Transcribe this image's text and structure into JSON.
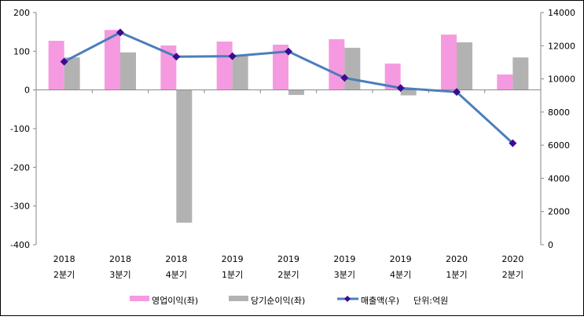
{
  "chart_data": {
    "type": "bar",
    "title": "",
    "categories": [
      [
        "2018",
        "2분기"
      ],
      [
        "2018",
        "3분기"
      ],
      [
        "2018",
        "4분기"
      ],
      [
        "2019",
        "1분기"
      ],
      [
        "2019",
        "2분기"
      ],
      [
        "2019",
        "3분기"
      ],
      [
        "2019",
        "4분기"
      ],
      [
        "2020",
        "1분기"
      ],
      [
        "2020",
        "2분기"
      ]
    ],
    "left_axis": {
      "ylim": [
        -400,
        200
      ],
      "ticks": [
        "200",
        "100",
        "0",
        "-100",
        "-200",
        "-300",
        "-400"
      ],
      "tick_values": [
        200,
        100,
        0,
        -100,
        -200,
        -300,
        -400
      ]
    },
    "right_axis": {
      "ylim": [
        0,
        14000
      ],
      "ticks": [
        "14000",
        "12000",
        "10000",
        "8000",
        "6000",
        "4000",
        "2000",
        "0"
      ],
      "tick_values": [
        14000,
        12000,
        10000,
        8000,
        6000,
        4000,
        2000,
        0
      ]
    },
    "series": [
      {
        "name": "영업이익(좌)",
        "type": "bar",
        "axis": "left",
        "color": "#F59AE0",
        "values": [
          127,
          155,
          115,
          125,
          117,
          131,
          68,
          143,
          40
        ]
      },
      {
        "name": "당기순이익(좌)",
        "type": "bar",
        "axis": "left",
        "color": "#B2B2B2",
        "values": [
          84,
          97,
          -343,
          91,
          -13,
          109,
          -14,
          123,
          84
        ]
      },
      {
        "name": "매출액(우)",
        "type": "line",
        "axis": "right",
        "color": "#4A7EBB",
        "marker_color": "#3D0A91",
        "values": [
          11040,
          12800,
          11340,
          11370,
          11650,
          10060,
          9450,
          9210,
          6120
        ]
      }
    ],
    "unit_note": "단위:억원",
    "legend_placement": "bottom"
  }
}
